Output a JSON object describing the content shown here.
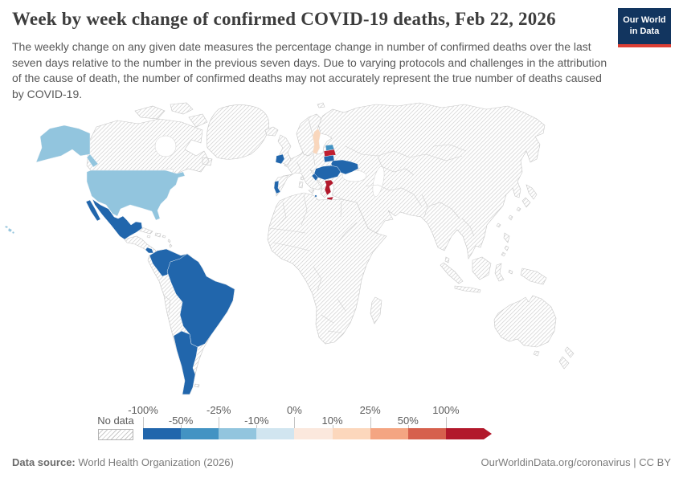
{
  "header": {
    "title": "Week by week change of confirmed COVID-19 deaths, Feb 22, 2026",
    "subtitle": "The weekly change on any given date measures the percentage change in number of confirmed deaths over the last seven days relative to the number in the previous seven days. Due to varying protocols and challenges in the attribution of the cause of death, the number of confirmed deaths may not accurately represent the true number of deaths caused by COVID-19.",
    "logo": {
      "line1": "Our World",
      "line2": "in Data"
    }
  },
  "legend": {
    "no_data_label": "No data",
    "colors": [
      "#2166ac",
      "#4393c3",
      "#92c5de",
      "#d1e5f0",
      "#fbe8dd",
      "#fcd7bc",
      "#f4a582",
      "#d6604d",
      "#b2182b"
    ],
    "ticks": [
      {
        "label": "-100%",
        "boundary": 0,
        "row": "top"
      },
      {
        "label": "-50%",
        "boundary": 1,
        "row": "bottom"
      },
      {
        "label": "-25%",
        "boundary": 2,
        "row": "top"
      },
      {
        "label": "-10%",
        "boundary": 3,
        "row": "bottom"
      },
      {
        "label": "0%",
        "boundary": 4,
        "row": "top"
      },
      {
        "label": "10%",
        "boundary": 5,
        "row": "bottom"
      },
      {
        "label": "25%",
        "boundary": 6,
        "row": "top"
      },
      {
        "label": "50%",
        "boundary": 7,
        "row": "bottom"
      },
      {
        "label": "100%",
        "boundary": 8,
        "row": "top"
      }
    ]
  },
  "chart_data": {
    "type": "choropleth_map",
    "title": "Week by week change of confirmed COVID-19 deaths",
    "date": "Feb 22, 2026",
    "unit": "%",
    "bins": [
      "-100% to -50%",
      "-50% to -25%",
      "-25% to -10%",
      "-10% to 0%",
      "0% to 10%",
      "10% to 25%",
      "25% to 50%",
      "50% to 100%",
      "100%+"
    ],
    "bin_colors": [
      "#2166ac",
      "#4393c3",
      "#92c5de",
      "#d1e5f0",
      "#fbe8dd",
      "#fcd7bc",
      "#f4a582",
      "#d6604d",
      "#b2182b"
    ],
    "no_data_style": "hatched",
    "countries": [
      {
        "name": "United States",
        "bin": "-25% to -10%"
      },
      {
        "name": "Mexico",
        "bin": "-100% to -50%"
      },
      {
        "name": "Costa Rica",
        "bin": "-100% to -50%"
      },
      {
        "name": "Colombia",
        "bin": "-100% to -50%"
      },
      {
        "name": "Venezuela",
        "bin": "-100% to -50%"
      },
      {
        "name": "Brazil",
        "bin": "-100% to -50%"
      },
      {
        "name": "Argentina",
        "bin": "-100% to -50%"
      },
      {
        "name": "Chile",
        "bin": "-100% to -50%"
      },
      {
        "name": "Ireland",
        "bin": "-100% to -50%"
      },
      {
        "name": "Portugal",
        "bin": "-100% to -50%"
      },
      {
        "name": "Lithuania",
        "bin": "-100% to -50%"
      },
      {
        "name": "Ukraine",
        "bin": "-100% to -50%"
      },
      {
        "name": "Hungary",
        "bin": "-100% to -50%"
      },
      {
        "name": "Croatia",
        "bin": "-100% to -50%"
      },
      {
        "name": "Serbia",
        "bin": "-100% to -50%"
      },
      {
        "name": "Romania",
        "bin": "-100% to -50%"
      },
      {
        "name": "Bulgaria",
        "bin": "-100% to -50%"
      },
      {
        "name": "Albania",
        "bin": "-100% to -50%"
      },
      {
        "name": "Malta",
        "bin": "-100% to -50%"
      },
      {
        "name": "Estonia",
        "bin": "-50% to -25%"
      },
      {
        "name": "Sweden",
        "bin": "10% to 25%"
      },
      {
        "name": "Latvia",
        "bin": "50% to 100%"
      },
      {
        "name": "Greece",
        "bin": "100%+"
      },
      {
        "name": "All other countries",
        "bin": "No data"
      }
    ],
    "country_colors": {
      "united_states": "#92c5de",
      "mexico": "#2166ac",
      "costa_rica": "#2166ac",
      "colombia_venezuela": "#2166ac",
      "brazil": "#2166ac",
      "argentina_chile": "#2166ac",
      "ireland": "#2166ac",
      "portugal": "#2166ac",
      "lithuania": "#2166ac",
      "ukraine": "#2166ac",
      "balkans": "#2166ac",
      "malta": "#2166ac",
      "estonia": "#4393c3",
      "latvia": "#c11f30",
      "sweden": "#f9d7bd",
      "greece": "#b2182b"
    }
  },
  "footer": {
    "datasource_label": "Data source:",
    "datasource_value": " World Health Organization (2026)",
    "right_text": "OurWorldinData.org/coronavirus | CC BY"
  }
}
